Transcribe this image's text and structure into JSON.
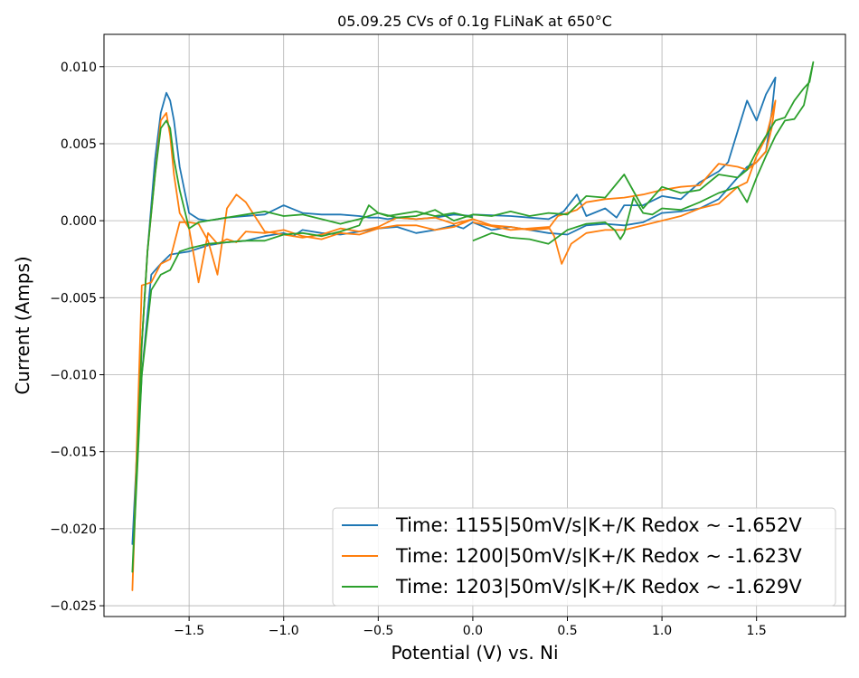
{
  "chart_data": {
    "type": "line",
    "title": "05.09.25 CVs of 0.1g FLiNaK at 650°C",
    "xlabel": "Potential (V) vs. Ni",
    "ylabel": "Current (Amps)",
    "xlim": [
      -1.95,
      1.97
    ],
    "ylim": [
      -0.0257,
      0.0121
    ],
    "xticks": [
      -1.5,
      -1.0,
      -0.5,
      0.0,
      0.5,
      1.0,
      1.5
    ],
    "xtick_labels": [
      "−1.5",
      "−1.0",
      "−0.5",
      "0.0",
      "0.5",
      "1.0",
      "1.5"
    ],
    "yticks": [
      0.01,
      0.005,
      0.0,
      -0.005,
      -0.01,
      -0.015,
      -0.02,
      -0.025
    ],
    "ytick_labels": [
      "0.010",
      "0.005",
      "0.000",
      "−0.005",
      "−0.010",
      "−0.015",
      "−0.020",
      "−0.025"
    ],
    "grid": true,
    "legend_position": "bottom-right",
    "series": [
      {
        "name": "Time: 1155|50mV/s|K+/K Redox ~ -1.652V",
        "color": "#1f77b4",
        "x": [
          0.0,
          0.2,
          0.3,
          0.4,
          0.48,
          0.55,
          0.6,
          0.7,
          0.76,
          0.8,
          0.9,
          1.0,
          1.1,
          1.2,
          1.3,
          1.35,
          1.42,
          1.45,
          1.5,
          1.55,
          1.6,
          1.58,
          1.55,
          1.5,
          1.45,
          1.4,
          1.3,
          1.2,
          1.1,
          1.0,
          0.9,
          0.8,
          0.7,
          0.6,
          0.5,
          0.4,
          0.3,
          0.2,
          0.1,
          0.0,
          -0.05,
          -0.1,
          -0.2,
          -0.3,
          -0.4,
          -0.5,
          -0.6,
          -0.7,
          -0.8,
          -0.9,
          -0.95,
          -1.0,
          -1.05,
          -1.1,
          -1.2,
          -1.3,
          -1.4,
          -1.5,
          -1.55,
          -1.6,
          -1.65,
          -1.7,
          -1.75,
          -1.8,
          -1.78,
          -1.75,
          -1.72,
          -1.68,
          -1.65,
          -1.62,
          -1.6,
          -1.58,
          -1.55,
          -1.5,
          -1.45,
          -1.4,
          -1.3,
          -1.2,
          -1.1,
          -1.0,
          -0.9,
          -0.8,
          -0.7,
          -0.6,
          -0.55,
          -0.5,
          -0.45,
          -0.4,
          -0.3,
          -0.2,
          -0.1,
          0.0
        ],
        "y": [
          0.0004,
          0.0003,
          0.0002,
          0.0001,
          0.0006,
          0.0017,
          0.0003,
          0.0008,
          0.0002,
          0.001,
          0.001,
          0.0016,
          0.0014,
          0.0025,
          0.0032,
          0.0038,
          0.0066,
          0.0078,
          0.0065,
          0.0082,
          0.0093,
          0.007,
          0.0045,
          0.0038,
          0.0035,
          0.0028,
          0.0014,
          0.0008,
          0.0006,
          0.0005,
          -0.0001,
          -0.0003,
          -0.0002,
          -0.0003,
          -0.0009,
          -0.0008,
          -0.0006,
          -0.0004,
          -0.0006,
          -0.0001,
          -0.0005,
          -0.0003,
          -0.0006,
          -0.0008,
          -0.0004,
          -0.0005,
          -0.0007,
          -0.0009,
          -0.0008,
          -0.0006,
          -0.001,
          -0.0008,
          -0.0009,
          -0.001,
          -0.0013,
          -0.0014,
          -0.0016,
          -0.002,
          -0.0021,
          -0.0022,
          -0.0028,
          -0.0035,
          -0.01,
          -0.021,
          -0.016,
          -0.008,
          -0.002,
          0.004,
          0.007,
          0.0083,
          0.0078,
          0.0065,
          0.0035,
          0.0005,
          0.0001,
          0.0,
          0.0002,
          0.0003,
          0.0004,
          0.001,
          0.0005,
          0.0004,
          0.0004,
          0.0003,
          0.0002,
          0.0002,
          0.0001,
          0.0002,
          0.0001,
          0.0002,
          0.0004,
          0.0003
        ]
      },
      {
        "name": "Time: 1200|50mV/s|K+/K Redox ~ -1.623V",
        "color": "#ff7f0e",
        "x": [
          0.0,
          0.2,
          0.3,
          0.4,
          0.43,
          0.47,
          0.52,
          0.6,
          0.7,
          0.8,
          0.9,
          1.0,
          1.1,
          1.2,
          1.3,
          1.4,
          1.45,
          1.5,
          1.55,
          1.6,
          1.58,
          1.55,
          1.5,
          1.45,
          1.4,
          1.3,
          1.2,
          1.1,
          1.0,
          0.9,
          0.8,
          0.7,
          0.6,
          0.55,
          0.5,
          0.45,
          0.4,
          0.3,
          0.2,
          0.1,
          0.0,
          -0.1,
          -0.2,
          -0.3,
          -0.4,
          -0.5,
          -0.6,
          -0.7,
          -0.8,
          -0.9,
          -1.0,
          -1.1,
          -1.2,
          -1.25,
          -1.3,
          -1.35,
          -1.4,
          -1.45,
          -1.5,
          -1.55,
          -1.6,
          -1.65,
          -1.7,
          -1.75,
          -1.8,
          -1.78,
          -1.75,
          -1.72,
          -1.68,
          -1.65,
          -1.62,
          -1.6,
          -1.58,
          -1.55,
          -1.5,
          -1.45,
          -1.4,
          -1.35,
          -1.3,
          -1.25,
          -1.2,
          -1.1,
          -1.0,
          -0.9,
          -0.8,
          -0.7,
          -0.6,
          -0.5,
          -0.4,
          -0.3,
          -0.2,
          -0.1,
          0.0
        ],
        "y": [
          -0.0001,
          -0.0006,
          -0.0005,
          -0.0004,
          -0.001,
          -0.0028,
          -0.0015,
          -0.0008,
          -0.0006,
          -0.0006,
          -0.0003,
          0.0,
          0.0003,
          0.0008,
          0.0011,
          0.0022,
          0.0025,
          0.0042,
          0.0054,
          0.0078,
          0.006,
          0.0045,
          0.0038,
          0.0033,
          0.0035,
          0.0037,
          0.0023,
          0.0022,
          0.002,
          0.0017,
          0.0015,
          0.0014,
          0.0012,
          0.0007,
          0.0005,
          0.0003,
          -0.0005,
          -0.0006,
          -0.0004,
          -0.0003,
          0.0001,
          -0.0002,
          0.0002,
          0.0001,
          0.0002,
          -0.0004,
          -0.0007,
          -0.0005,
          -0.0009,
          -0.0011,
          -0.0009,
          -0.0007,
          0.0012,
          0.0017,
          0.0008,
          -0.0035,
          -0.0013,
          -0.0002,
          -0.0001,
          -0.0001,
          -0.0025,
          -0.0028,
          -0.004,
          -0.0042,
          -0.024,
          -0.017,
          -0.008,
          -0.002,
          0.003,
          0.0065,
          0.007,
          0.0055,
          0.003,
          0.0005,
          -0.0005,
          -0.004,
          -0.0008,
          -0.0015,
          -0.0012,
          -0.0014,
          -0.0007,
          -0.0008,
          -0.0006,
          -0.001,
          -0.0012,
          -0.0008,
          -0.0009,
          -0.0005,
          -0.0003,
          -0.0003,
          -0.0006,
          -0.0004,
          0.0001
        ]
      },
      {
        "name": "Time: 1203|50mV/s|K+/K Redox ~ -1.629V",
        "color": "#2ca02c",
        "x": [
          0.0,
          0.1,
          0.2,
          0.3,
          0.4,
          0.5,
          0.6,
          0.7,
          0.75,
          0.78,
          0.8,
          0.85,
          0.9,
          0.95,
          1.0,
          1.1,
          1.2,
          1.3,
          1.4,
          1.45,
          1.5,
          1.55,
          1.6,
          1.65,
          1.7,
          1.75,
          1.8,
          1.78,
          1.75,
          1.7,
          1.65,
          1.6,
          1.55,
          1.5,
          1.45,
          1.4,
          1.3,
          1.2,
          1.1,
          1.0,
          0.9,
          0.8,
          0.7,
          0.6,
          0.5,
          0.4,
          0.3,
          0.2,
          0.1,
          0.0,
          -0.1,
          -0.2,
          -0.3,
          -0.4,
          -0.5,
          -0.55,
          -0.6,
          -0.7,
          -0.8,
          -0.9,
          -1.0,
          -1.1,
          -1.2,
          -1.3,
          -1.4,
          -1.5,
          -1.55,
          -1.6,
          -1.65,
          -1.7,
          -1.75,
          -1.8,
          -1.78,
          -1.75,
          -1.72,
          -1.68,
          -1.65,
          -1.62,
          -1.6,
          -1.58,
          -1.55,
          -1.5,
          -1.45,
          -1.4,
          -1.3,
          -1.2,
          -1.1,
          -1.0,
          -0.9,
          -0.8,
          -0.7,
          -0.6,
          -0.5,
          -0.45,
          -0.4,
          -0.3,
          -0.2,
          -0.1,
          0.0
        ],
        "y": [
          -0.0013,
          -0.0008,
          -0.0011,
          -0.0012,
          -0.0015,
          -0.0006,
          -0.0002,
          -0.0001,
          -0.0006,
          -0.0012,
          -0.0008,
          0.0015,
          0.0005,
          0.0004,
          0.0008,
          0.0007,
          0.0012,
          0.0018,
          0.0022,
          0.0012,
          0.0028,
          0.0042,
          0.0055,
          0.0065,
          0.0066,
          0.0075,
          0.0103,
          0.009,
          0.0086,
          0.0078,
          0.0067,
          0.0065,
          0.0055,
          0.0045,
          0.0033,
          0.0028,
          0.003,
          0.002,
          0.0018,
          0.0022,
          0.0008,
          0.003,
          0.0015,
          0.0016,
          0.0004,
          0.0005,
          0.0003,
          0.0006,
          0.0003,
          0.0004,
          0.0,
          0.0007,
          0.0003,
          0.0002,
          0.0005,
          0.001,
          -0.0003,
          -0.0007,
          -0.001,
          -0.0008,
          -0.0009,
          -0.0013,
          -0.0013,
          -0.0014,
          -0.0015,
          -0.0018,
          -0.002,
          -0.0032,
          -0.0035,
          -0.0045,
          -0.01,
          -0.0228,
          -0.017,
          -0.008,
          -0.002,
          0.003,
          0.006,
          0.0065,
          0.006,
          0.004,
          0.002,
          -0.0005,
          -0.0001,
          0.0,
          0.0002,
          0.0004,
          0.0006,
          0.0003,
          0.0004,
          0.0001,
          -0.0002,
          0.0001,
          0.0005,
          0.0003,
          0.0004,
          0.0006,
          0.0003,
          0.0005,
          0.0002
        ]
      }
    ]
  }
}
